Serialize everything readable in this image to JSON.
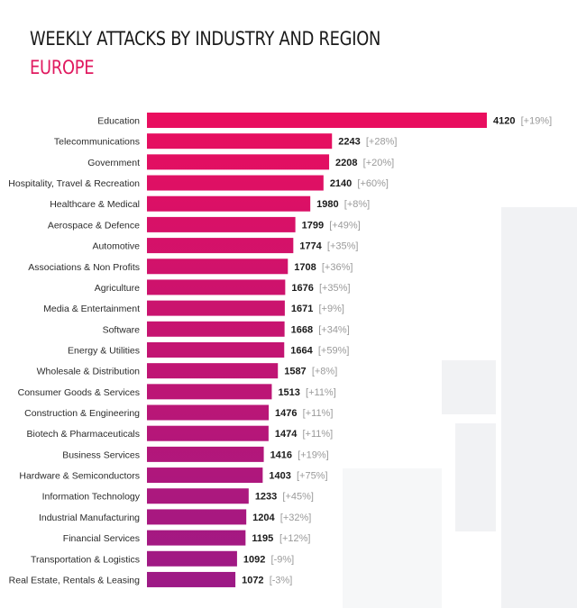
{
  "chart_data": {
    "type": "bar",
    "orientation": "horizontal",
    "title": "WEEKLY ATTACKS BY INDUSTRY AND REGION",
    "subtitle": "EUROPE",
    "categories": [
      "Education",
      "Telecommunications",
      "Government",
      "Hospitality, Travel & Recreation",
      "Healthcare & Medical",
      "Aerospace & Defence",
      "Automotive",
      "Associations & Non Profits",
      "Agriculture",
      "Media & Entertainment",
      "Software",
      "Energy & Utilities",
      "Wholesale & Distribution",
      "Consumer Goods & Services",
      "Construction & Engineering",
      "Biotech & Pharmaceuticals",
      "Business Services",
      "Hardware & Semiconductors",
      "Information Technology",
      "Industrial Manufacturing",
      "Financial Services",
      "Transportation & Logistics",
      "Real Estate, Rentals & Leasing"
    ],
    "values": [
      4120,
      2243,
      2208,
      2140,
      1980,
      1799,
      1774,
      1708,
      1676,
      1671,
      1668,
      1664,
      1587,
      1513,
      1476,
      1474,
      1416,
      1403,
      1233,
      1204,
      1195,
      1092,
      1072
    ],
    "change_labels": [
      "[+19%]",
      "[+28%]",
      "[+20%]",
      "[+60%]",
      "[+8%]",
      "[+49%]",
      "[+35%]",
      "[+36%]",
      "[+35%]",
      "[+9%]",
      "[+34%]",
      "[+59%]",
      "[+8%]",
      "[+11%]",
      "[+11%]",
      "[+11%]",
      "[+19%]",
      "[+75%]",
      "[+45%]",
      "[+32%]",
      "[+12%]",
      "[-9%]",
      "[-3%]"
    ],
    "xlim": [
      0,
      4120
    ],
    "grid": false,
    "xlabel": "",
    "ylabel": ""
  },
  "colors": {
    "bar_top": "#ea0e5e",
    "bar_bottom": "#9c1a86",
    "subtitle": "#e0195f"
  }
}
